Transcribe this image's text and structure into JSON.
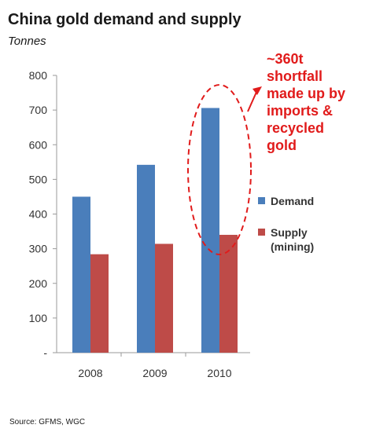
{
  "chart_data": {
    "type": "bar",
    "title": "China gold demand and supply",
    "subtitle": "Tonnes",
    "categories": [
      "2008",
      "2009",
      "2010"
    ],
    "series": [
      {
        "name": "Demand",
        "values": [
          450,
          542,
          706
        ],
        "color": "#4a7ebb"
      },
      {
        "name": "Supply (mining)",
        "values": [
          284,
          314,
          340
        ],
        "color": "#be4b48"
      }
    ],
    "ylim": [
      0,
      800
    ],
    "yticks": [
      {
        "value": 800,
        "label": "800"
      },
      {
        "value": 700,
        "label": "700"
      },
      {
        "value": 600,
        "label": "600"
      },
      {
        "value": 500,
        "label": "500"
      },
      {
        "value": 400,
        "label": "400"
      },
      {
        "value": 300,
        "label": "300"
      },
      {
        "value": 200,
        "label": "200"
      },
      {
        "value": 100,
        "label": "100"
      },
      {
        "value": 0,
        "label": "-"
      }
    ],
    "grid": false,
    "legend_position": "right",
    "legend": [
      {
        "lines": [
          "Demand"
        ],
        "color": "#4a7ebb"
      },
      {
        "lines": [
          "Supply",
          "(mining)"
        ],
        "color": "#be4b48"
      }
    ],
    "annotation": {
      "text": "~360t\nshortfall\nmade up by\nimports &\nrecycled\ngold",
      "color": "#e11b1b",
      "highlight_category": "2010"
    }
  },
  "source": "Source: GFMS, WGC"
}
